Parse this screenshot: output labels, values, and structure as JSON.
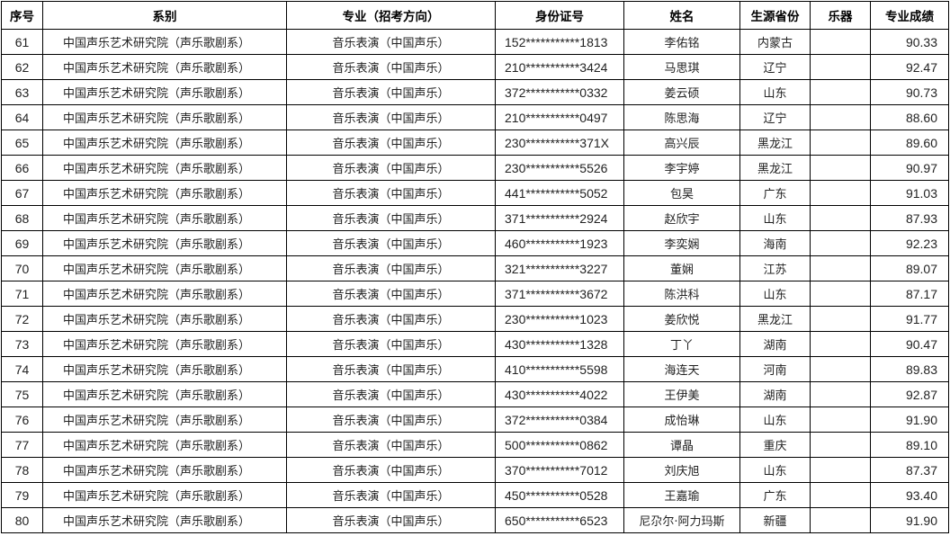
{
  "headers": [
    "序号",
    "系别",
    "专业（招考方向）",
    "身份证号",
    "姓名",
    "生源省份",
    "乐器",
    "专业成绩"
  ],
  "rows": [
    {
      "no": "61",
      "dept": "中国声乐艺术研究院（声乐歌剧系）",
      "major": "音乐表演（中国声乐）",
      "id": "152***********1813",
      "name": "李佑铭",
      "province": "内蒙古",
      "instrument": "",
      "score": "90.33"
    },
    {
      "no": "62",
      "dept": "中国声乐艺术研究院（声乐歌剧系）",
      "major": "音乐表演（中国声乐）",
      "id": "210***********3424",
      "name": "马思琪",
      "province": "辽宁",
      "instrument": "",
      "score": "92.47"
    },
    {
      "no": "63",
      "dept": "中国声乐艺术研究院（声乐歌剧系）",
      "major": "音乐表演（中国声乐）",
      "id": "372***********0332",
      "name": "姜云硕",
      "province": "山东",
      "instrument": "",
      "score": "90.73"
    },
    {
      "no": "64",
      "dept": "中国声乐艺术研究院（声乐歌剧系）",
      "major": "音乐表演（中国声乐）",
      "id": "210***********0497",
      "name": "陈思海",
      "province": "辽宁",
      "instrument": "",
      "score": "88.60"
    },
    {
      "no": "65",
      "dept": "中国声乐艺术研究院（声乐歌剧系）",
      "major": "音乐表演（中国声乐）",
      "id": "230***********371X",
      "name": "高兴辰",
      "province": "黑龙江",
      "instrument": "",
      "score": "89.60"
    },
    {
      "no": "66",
      "dept": "中国声乐艺术研究院（声乐歌剧系）",
      "major": "音乐表演（中国声乐）",
      "id": "230***********5526",
      "name": "李宇婷",
      "province": "黑龙江",
      "instrument": "",
      "score": "90.97"
    },
    {
      "no": "67",
      "dept": "中国声乐艺术研究院（声乐歌剧系）",
      "major": "音乐表演（中国声乐）",
      "id": "441***********5052",
      "name": "包昊",
      "province": "广东",
      "instrument": "",
      "score": "91.03"
    },
    {
      "no": "68",
      "dept": "中国声乐艺术研究院（声乐歌剧系）",
      "major": "音乐表演（中国声乐）",
      "id": "371***********2924",
      "name": "赵欣宇",
      "province": "山东",
      "instrument": "",
      "score": "87.93"
    },
    {
      "no": "69",
      "dept": "中国声乐艺术研究院（声乐歌剧系）",
      "major": "音乐表演（中国声乐）",
      "id": "460***********1923",
      "name": "李奕娴",
      "province": "海南",
      "instrument": "",
      "score": "92.23"
    },
    {
      "no": "70",
      "dept": "中国声乐艺术研究院（声乐歌剧系）",
      "major": "音乐表演（中国声乐）",
      "id": "321***********3227",
      "name": "董娴",
      "province": "江苏",
      "instrument": "",
      "score": "89.07"
    },
    {
      "no": "71",
      "dept": "中国声乐艺术研究院（声乐歌剧系）",
      "major": "音乐表演（中国声乐）",
      "id": "371***********3672",
      "name": "陈洪科",
      "province": "山东",
      "instrument": "",
      "score": "87.17"
    },
    {
      "no": "72",
      "dept": "中国声乐艺术研究院（声乐歌剧系）",
      "major": "音乐表演（中国声乐）",
      "id": "230***********1023",
      "name": "姜欣悦",
      "province": "黑龙江",
      "instrument": "",
      "score": "91.77"
    },
    {
      "no": "73",
      "dept": "中国声乐艺术研究院（声乐歌剧系）",
      "major": "音乐表演（中国声乐）",
      "id": "430***********1328",
      "name": "丁丫",
      "province": "湖南",
      "instrument": "",
      "score": "90.47"
    },
    {
      "no": "74",
      "dept": "中国声乐艺术研究院（声乐歌剧系）",
      "major": "音乐表演（中国声乐）",
      "id": "410***********5598",
      "name": "海连天",
      "province": "河南",
      "instrument": "",
      "score": "89.83"
    },
    {
      "no": "75",
      "dept": "中国声乐艺术研究院（声乐歌剧系）",
      "major": "音乐表演（中国声乐）",
      "id": "430***********4022",
      "name": "王伊美",
      "province": "湖南",
      "instrument": "",
      "score": "92.87"
    },
    {
      "no": "76",
      "dept": "中国声乐艺术研究院（声乐歌剧系）",
      "major": "音乐表演（中国声乐）",
      "id": "372***********0384",
      "name": "成怡琳",
      "province": "山东",
      "instrument": "",
      "score": "91.90"
    },
    {
      "no": "77",
      "dept": "中国声乐艺术研究院（声乐歌剧系）",
      "major": "音乐表演（中国声乐）",
      "id": "500***********0862",
      "name": "谭晶",
      "province": "重庆",
      "instrument": "",
      "score": "89.10"
    },
    {
      "no": "78",
      "dept": "中国声乐艺术研究院（声乐歌剧系）",
      "major": "音乐表演（中国声乐）",
      "id": "370***********7012",
      "name": "刘庆旭",
      "province": "山东",
      "instrument": "",
      "score": "87.37"
    },
    {
      "no": "79",
      "dept": "中国声乐艺术研究院（声乐歌剧系）",
      "major": "音乐表演（中国声乐）",
      "id": "450***********0528",
      "name": "王嘉瑜",
      "province": "广东",
      "instrument": "",
      "score": "93.40"
    },
    {
      "no": "80",
      "dept": "中国声乐艺术研究院（声乐歌剧系）",
      "major": "音乐表演（中国声乐）",
      "id": "650***********6523",
      "name": "尼尕尔·阿力玛斯",
      "province": "新疆",
      "instrument": "",
      "score": "91.90"
    }
  ]
}
